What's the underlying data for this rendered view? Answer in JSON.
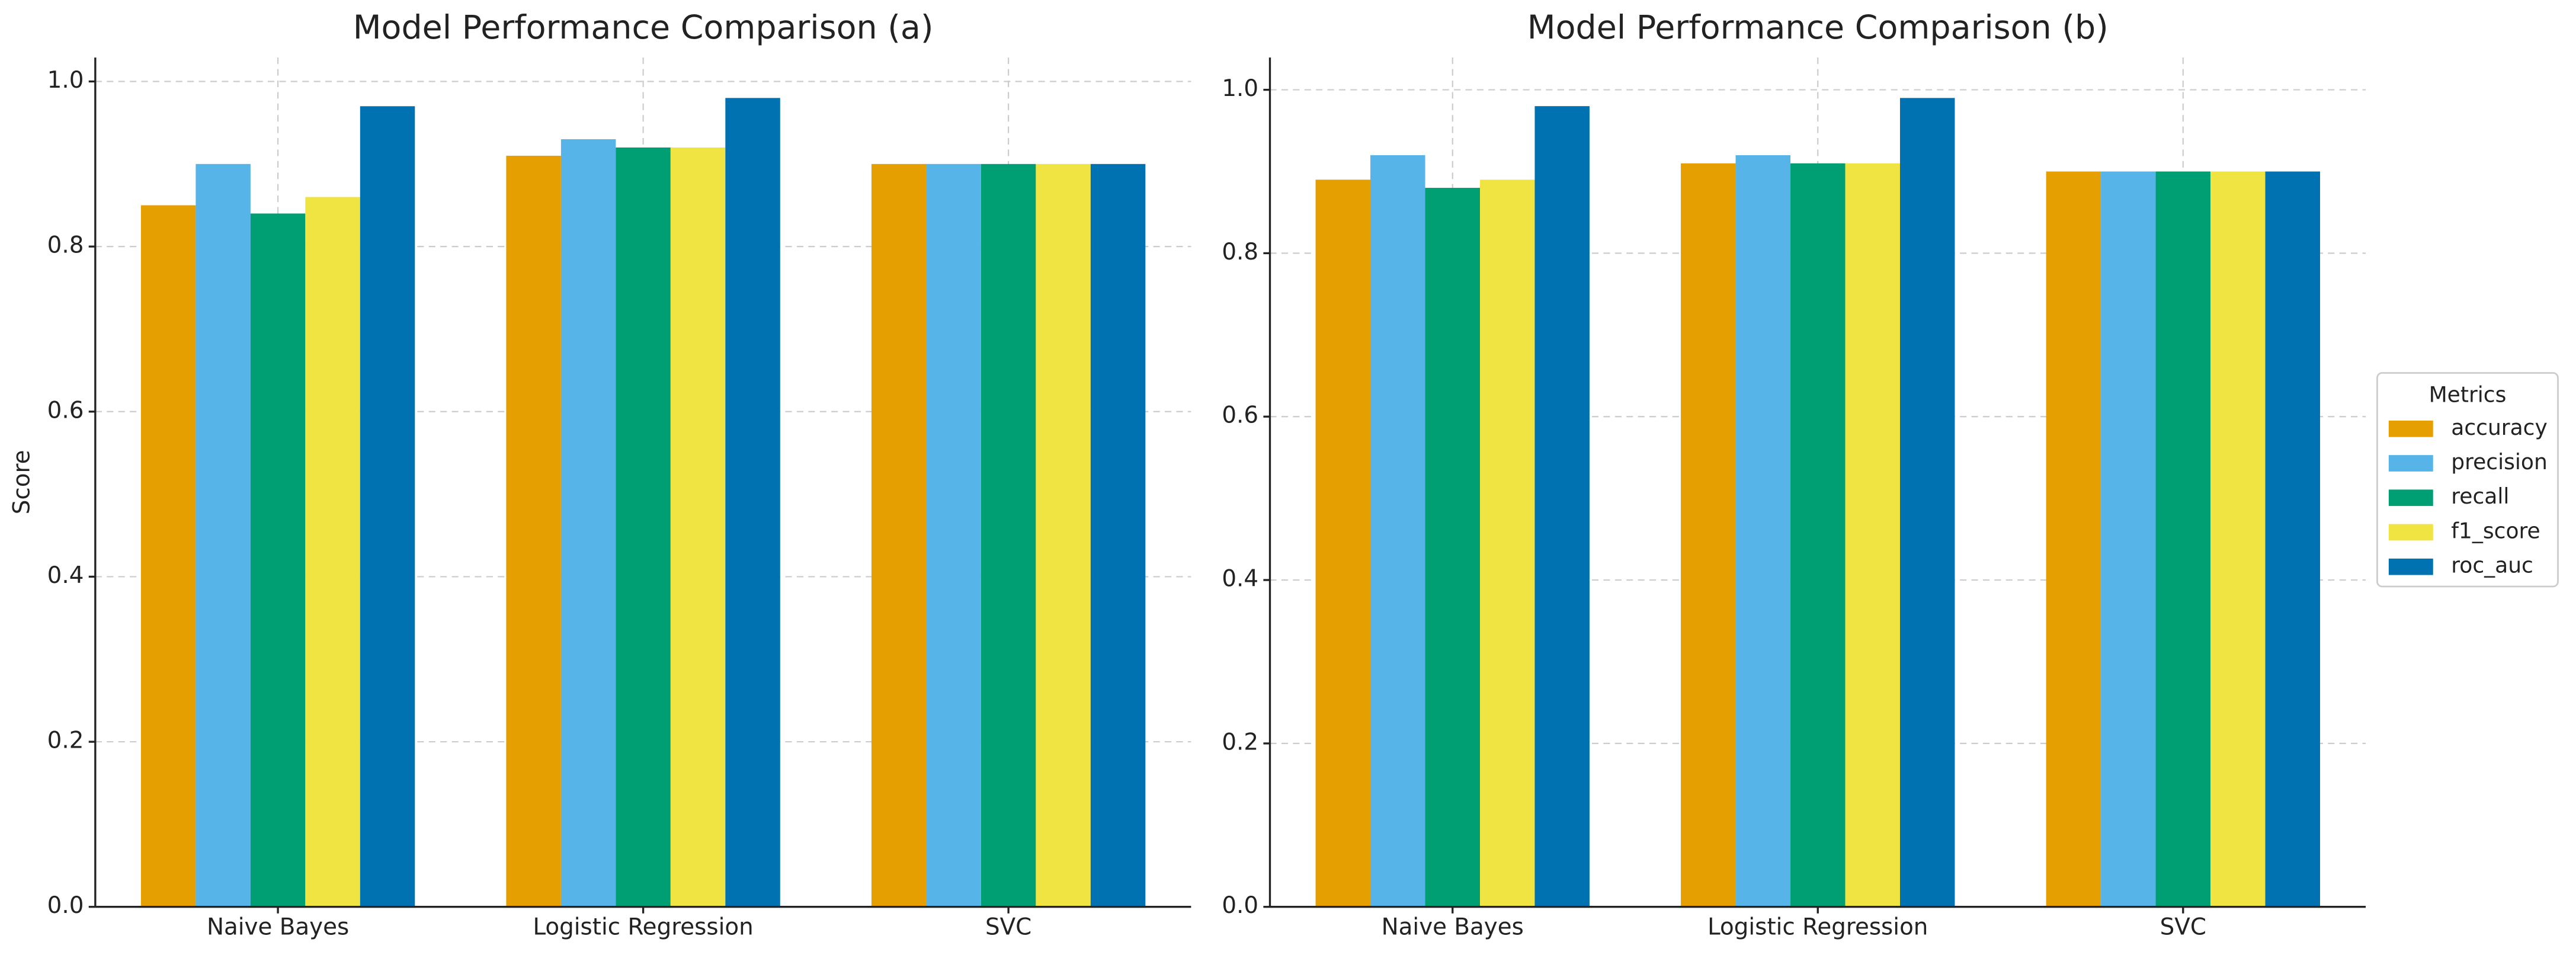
{
  "chart_data": [
    {
      "type": "bar",
      "title": "Model Performance Comparison (a)",
      "y_label": "Score",
      "categories": [
        "Naive Bayes",
        "Logistic Regression",
        "SVC"
      ],
      "series": [
        {
          "name": "accuracy",
          "color": "#E69F00",
          "values": [
            0.85,
            0.91,
            0.9
          ]
        },
        {
          "name": "precision",
          "color": "#56B4E9",
          "values": [
            0.9,
            0.93,
            0.9
          ]
        },
        {
          "name": "recall",
          "color": "#009E73",
          "values": [
            0.84,
            0.92,
            0.9
          ]
        },
        {
          "name": "f1_score",
          "color": "#F0E442",
          "values": [
            0.86,
            0.92,
            0.9
          ]
        },
        {
          "name": "roc_auc",
          "color": "#0072B2",
          "values": [
            0.97,
            0.98,
            0.9
          ]
        }
      ],
      "ylim": [
        0,
        1.029
      ],
      "yticks": [
        {
          "value": 0,
          "label": "0.0"
        },
        0.2,
        0.4,
        0.6,
        0.8,
        {
          "value": 1,
          "label": "1.0"
        }
      ],
      "grid": true
    },
    {
      "type": "bar",
      "title": "Model Performance Comparison (b)",
      "categories": [
        "Naive Bayes",
        "Logistic Regression",
        "SVC"
      ],
      "series": [
        {
          "name": "accuracy",
          "color": "#E69F00",
          "values": [
            0.89,
            0.91,
            0.9
          ]
        },
        {
          "name": "precision",
          "color": "#56B4E9",
          "values": [
            0.92,
            0.92,
            0.9
          ]
        },
        {
          "name": "recall",
          "color": "#009E73",
          "values": [
            0.88,
            0.91,
            0.9
          ]
        },
        {
          "name": "f1_score",
          "color": "#F0E442",
          "values": [
            0.89,
            0.91,
            0.9
          ]
        },
        {
          "name": "roc_auc",
          "color": "#0072B2",
          "values": [
            0.98,
            0.99,
            0.9
          ]
        }
      ],
      "ylim": [
        0,
        1.0395
      ],
      "yticks": [
        {
          "value": 0,
          "label": "0.0"
        },
        0.2,
        0.4,
        0.6,
        0.8,
        {
          "value": 1,
          "label": "1.0"
        }
      ],
      "grid": true,
      "legend": "right",
      "legend_title": "Metrics"
    }
  ]
}
